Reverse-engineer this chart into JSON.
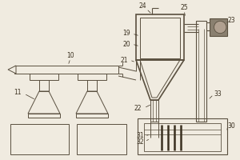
{
  "bg_color": "#f0ebe0",
  "line_color": "#5a5040",
  "label_color": "#3a3020",
  "fill_dark": "#8a7a6a",
  "label_fontsize": 5.5
}
